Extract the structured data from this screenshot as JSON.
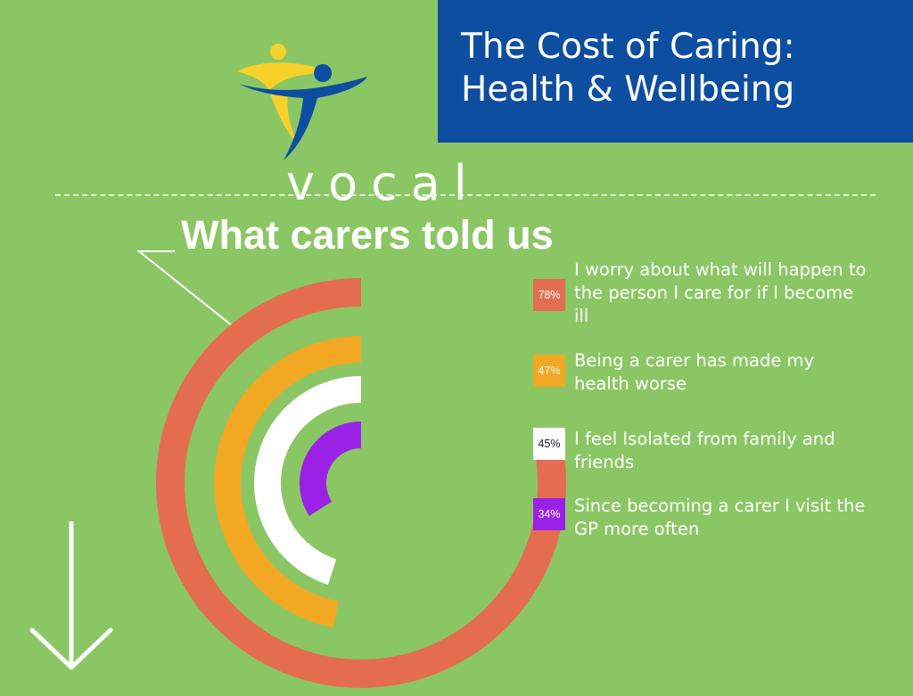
{
  "header": {
    "title_line1": "The Cost of Caring:",
    "title_line2": "Health & Wellbeing"
  },
  "logo": {
    "wordmark": "vocal"
  },
  "headline": "What carers told us",
  "colors": {
    "background": "#8bc664",
    "title_box": "#0e4ea0",
    "worry": "#e46d4f",
    "health_worse": "#f2a823",
    "isolated": "#ffffff",
    "gp_visits": "#9a22e6"
  },
  "chart_data": {
    "type": "radial-bar",
    "unit": "%",
    "max": 100,
    "series": [
      {
        "label": "78%",
        "value": 78,
        "description": "I worry about what will happen to the person I care for if I become ill",
        "color": "#e46d4f",
        "label_color": "#ffffff"
      },
      {
        "label": "47%",
        "value": 47,
        "description": "Being a carer has made my health worse",
        "color": "#f2a823",
        "label_color": "#ffffff"
      },
      {
        "label": "45%",
        "value": 45,
        "description": "I feel Isolated from family and friends",
        "color": "#ffffff",
        "label_color": "#1a1a2e"
      },
      {
        "label": "34%",
        "value": 34,
        "description": "Since becoming a carer I visit the GP more often",
        "color": "#9a22e6",
        "label_color": "#ffffff"
      }
    ]
  },
  "icons": {
    "scroll": "arrow-down-icon"
  }
}
